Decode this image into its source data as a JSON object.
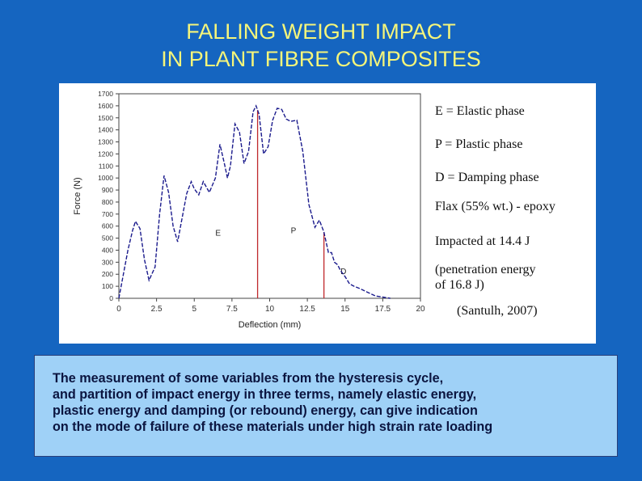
{
  "slide": {
    "title_line1": "FALLING WEIGHT IMPACT",
    "title_line2": "IN PLANT FIBRE COMPOSITES",
    "legend_notes": [
      "E = Elastic phase",
      "P = Plastic phase",
      "D = Damping phase",
      "Flax (55% wt.) - epoxy",
      "Impacted at 14.4 J",
      "(penetration energy",
      "of 16.8 J)",
      "(Santulh, 2007)"
    ],
    "caption_lines": [
      "The measurement of some variables from the hysteresis cycle,",
      "and partition of impact energy in three terms, namely elastic energy,",
      "plastic energy and damping (or rebound) energy, can give indication",
      "on the mode of failure of these materials under high strain rate loading"
    ]
  },
  "colors": {
    "background": "#1565c0",
    "title": "#f5f57a",
    "curve": "#1a1a8c",
    "phase_lines": "#c0282c",
    "caption_bg": "#9fd1f7"
  },
  "chart_data": {
    "type": "line",
    "xlabel": "Deflection (mm)",
    "ylabel": "Force (N)",
    "xlim": [
      0,
      20
    ],
    "ylim": [
      0,
      1700
    ],
    "xticks": [
      0,
      2.5,
      5,
      7.5,
      10,
      12.5,
      15,
      17.5,
      20
    ],
    "xtick_labels": [
      "0",
      "2.5",
      "5",
      "7.5",
      "10",
      "12.5",
      "15",
      "17.5",
      "20"
    ],
    "yticks": [
      0,
      100,
      200,
      300,
      400,
      500,
      600,
      700,
      800,
      900,
      1000,
      1100,
      1200,
      1300,
      1400,
      1500,
      1600,
      1700
    ],
    "ytick_labels": [
      "0",
      "100",
      "200",
      "300",
      "400",
      "500",
      "600",
      "700",
      "800",
      "900",
      "1000",
      "1100",
      "1200",
      "1300",
      "1400",
      "1500",
      "1600",
      "1700"
    ],
    "x": [
      0,
      0.3,
      0.6,
      0.9,
      1.1,
      1.4,
      1.7,
      2.0,
      2.4,
      2.7,
      3.0,
      3.3,
      3.6,
      3.9,
      4.2,
      4.5,
      4.8,
      5.0,
      5.3,
      5.6,
      6.0,
      6.4,
      6.7,
      7.0,
      7.2,
      7.4,
      7.7,
      8.0,
      8.3,
      8.6,
      8.9,
      9.1,
      9.3,
      9.6,
      9.9,
      10.2,
      10.5,
      10.8,
      11.1,
      11.4,
      11.8,
      12.2,
      12.6,
      13.0,
      13.3,
      13.6,
      13.9,
      14.1,
      14.3,
      14.5,
      14.7,
      15.0,
      15.3,
      15.6,
      16.0,
      16.5,
      17.0,
      17.5,
      18.0
    ],
    "y": [
      0,
      200,
      400,
      560,
      640,
      580,
      320,
      150,
      260,
      700,
      1020,
      880,
      600,
      470,
      670,
      870,
      970,
      910,
      860,
      970,
      880,
      1000,
      1280,
      1120,
      1000,
      1100,
      1450,
      1380,
      1120,
      1220,
      1550,
      1600,
      1530,
      1200,
      1260,
      1480,
      1580,
      1570,
      1490,
      1470,
      1480,
      1220,
      780,
      590,
      650,
      550,
      380,
      380,
      300,
      280,
      230,
      180,
      120,
      100,
      80,
      50,
      20,
      10,
      0
    ],
    "phase_markers": [
      {
        "label": "E",
        "x": 9.2,
        "label_x": 6.4,
        "label_y": 520
      },
      {
        "label": "P",
        "x": 13.6,
        "label_x": 11.4,
        "label_y": 540
      },
      {
        "label": "D",
        "x": null,
        "label_x": 14.7,
        "label_y": 200
      }
    ],
    "grid": false
  }
}
